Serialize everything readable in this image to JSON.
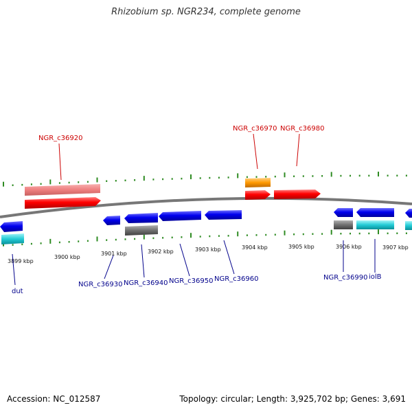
{
  "title": "Rhizobium sp. NGR234, complete genome",
  "footer": {
    "accession": "Accession: NC_012587",
    "summary": "Topology: circular; Length: 3,925,702 bp; Genes: 3,691"
  },
  "colors": {
    "forward_label": "#cc0000",
    "reverse_label": "#00008b",
    "tick": "#2e8b22",
    "backbone": "#777777"
  },
  "tick_labels": [
    "3899 kbp",
    "3900 kbp",
    "3901 kbp",
    "3902 kbp",
    "3903 kbp",
    "3904 kbp",
    "3905 kbp",
    "3906 kbp",
    "3907 kbp"
  ],
  "forward_genes": [
    {
      "name": "NGR_c36920",
      "strand": "+",
      "color": "#ff0000"
    },
    {
      "name": "NGR_c36970",
      "strand": "+",
      "color": "#ff0000"
    },
    {
      "name": "NGR_c36980",
      "strand": "+",
      "color": "#ff0000"
    }
  ],
  "reverse_genes": [
    {
      "name": "dut",
      "strand": "-",
      "color": "#0000ee"
    },
    {
      "name": "NGR_c36930",
      "strand": "-",
      "color": "#0000ee"
    },
    {
      "name": "NGR_c36940",
      "strand": "-",
      "color": "#0000ee"
    },
    {
      "name": "NGR_c36950",
      "strand": "-",
      "color": "#0000ee"
    },
    {
      "name": "NGR_c36960",
      "strand": "-",
      "color": "#0000ee"
    },
    {
      "name": "NGR_c36990",
      "strand": "-",
      "color": "#0000ee"
    },
    {
      "name": "iolB",
      "strand": "-",
      "color": "#0000ee"
    }
  ],
  "feature_colors": {
    "gene_fwd": "#ff0000",
    "gene_rev": "#0000ee",
    "cds_fwd": "#f08080",
    "cds_rev": "#00bcd4",
    "rna": "#ff9900",
    "misc": "#707070"
  }
}
